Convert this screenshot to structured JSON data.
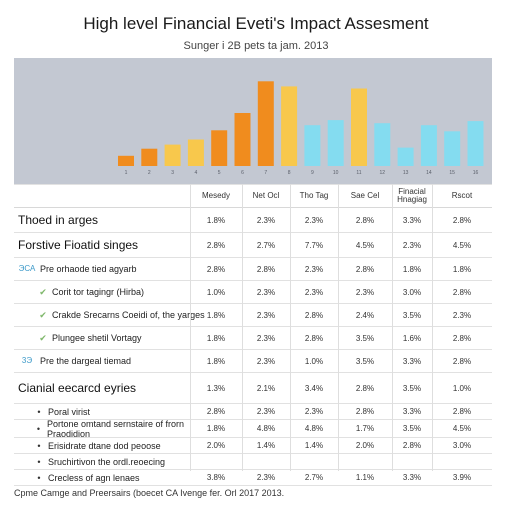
{
  "title": "High level Financial Eveti's Impact Assesment",
  "subtitle": "Sunger i 2B pets ta jam. 2013",
  "chart_data": {
    "type": "bar",
    "ylim": [
      0,
      100
    ],
    "categories": [
      "1",
      "2",
      "3",
      "4",
      "5",
      "6",
      "7",
      "8",
      "9",
      "10",
      "11",
      "12",
      "13",
      "14",
      "15",
      "16"
    ],
    "series": [
      {
        "values": [
          10,
          17,
          21,
          26,
          35,
          52,
          83,
          78,
          40,
          45,
          76,
          42,
          18,
          40,
          34,
          44
        ]
      }
    ],
    "colors": [
      "#f08c1e",
      "#f08c1e",
      "#f8c84c",
      "#f8c84c",
      "#f08c1e",
      "#f08c1e",
      "#f08c1e",
      "#f8c84c",
      "#84dcf0",
      "#84dcf0",
      "#f8c84c",
      "#84dcf0",
      "#84dcf0",
      "#84dcf0",
      "#84dcf0",
      "#84dcf0"
    ],
    "x_tick_marks": [
      "1",
      "2",
      "3",
      "4",
      "5",
      "6",
      "7",
      "8",
      "9",
      "10",
      "11",
      "12",
      "13",
      "14",
      "15",
      "16"
    ]
  },
  "table": {
    "headers": [
      "Mesedy",
      "Net Ocl",
      "Tho Tag",
      "Sae Cel",
      "Finacial Hnagiag",
      "Rscot"
    ],
    "rows": [
      {
        "kind": "section",
        "label": "Thoed in arges",
        "values": [
          "1.8%",
          "2.3%",
          "2.3%",
          "2.8%",
          "3.3%",
          "2.8%"
        ]
      },
      {
        "kind": "section",
        "label": "Forstive Fioatid singes",
        "values": [
          "2.8%",
          "2.7%",
          "7.7%",
          "4.5%",
          "2.3%",
          "4.5%"
        ]
      },
      {
        "kind": "sub",
        "mark": "ЭСА",
        "label": "Pre orhaode tied agyarb",
        "values": [
          "2.8%",
          "2.8%",
          "2.3%",
          "2.8%",
          "1.8%",
          "1.8%"
        ]
      },
      {
        "kind": "check",
        "label": "Corit tor tagingr (Hirba)",
        "values": [
          "1.0%",
          "2.3%",
          "2.3%",
          "2.3%",
          "3.0%",
          "2.8%"
        ]
      },
      {
        "kind": "check",
        "label": "Crakde Srecarns Coeidi of, the yarges",
        "values": [
          "1.8%",
          "2.3%",
          "2.8%",
          "2.4%",
          "3.5%",
          "2.3%"
        ]
      },
      {
        "kind": "check",
        "label": "Plungee shetil Vortagy",
        "values": [
          "1.8%",
          "2.3%",
          "2.8%",
          "3.5%",
          "1.6%",
          "2.8%"
        ]
      },
      {
        "kind": "sub",
        "mark": "3Э",
        "label": "Pre the dargeal tiemad",
        "values": [
          "1.8%",
          "2.3%",
          "1.0%",
          "3.5%",
          "3.3%",
          "2.8%"
        ]
      },
      {
        "kind": "section",
        "label": "Cianial eecarcd eyries",
        "values": [
          "1.3%",
          "2.1%",
          "3.4%",
          "2.8%",
          "3.5%",
          "1.0%"
        ]
      },
      {
        "kind": "bullet",
        "label": "Poral virist",
        "values": [
          "2.8%",
          "2.3%",
          "2.3%",
          "2.8%",
          "3.3%",
          "2.8%"
        ]
      },
      {
        "kind": "bullet",
        "label": "Portone omtand sernstaire of frorn Praodidion",
        "values": [
          "1.8%",
          "4.8%",
          "4.8%",
          "1.7%",
          "3.5%",
          "4.5%"
        ]
      },
      {
        "kind": "bullet",
        "label": "Erisidrate dtane dod peoose",
        "values": [
          "2.0%",
          "1.4%",
          "1.4%",
          "2.0%",
          "2.8%",
          "3.0%"
        ]
      },
      {
        "kind": "bullet",
        "label": "Sruchirtivon the ordl.reoecing",
        "values": [
          "",
          "",
          "",
          "",
          "",
          ""
        ]
      },
      {
        "kind": "bullet",
        "label": "Crecless of agn lenaes",
        "values": [
          "3.8%",
          "2.3%",
          "2.7%",
          "1.1%",
          "3.3%",
          "3.9%"
        ]
      }
    ]
  },
  "footer": "Cpme Camge and Preersairs (boecet CA Ivenge fer. Orl 2017 2013."
}
